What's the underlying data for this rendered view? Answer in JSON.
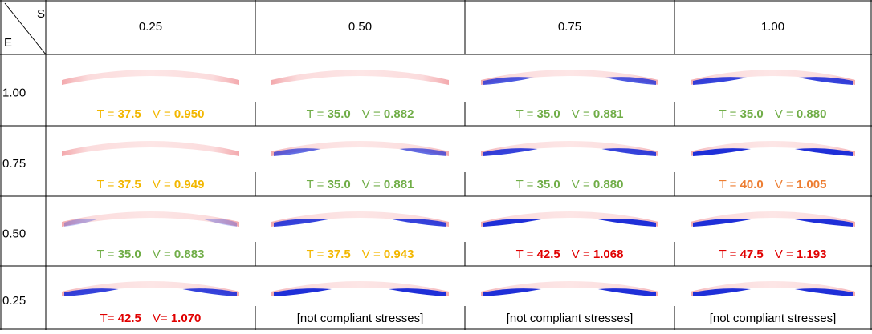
{
  "header": {
    "corner_top": "S",
    "corner_bottom": "E",
    "columns": [
      "0.25",
      "0.50",
      "0.75",
      "1.00"
    ]
  },
  "table": {
    "rows": [
      {
        "label": "1.00",
        "cells": [
          {
            "t_label": "T = ",
            "t": "37.5",
            "v_label": "V = ",
            "v": "0.950",
            "color": "#f2b700"
          },
          {
            "t_label": "T = ",
            "t": "35.0",
            "v_label": "V = ",
            "v": "0.882",
            "color": "#70ad47"
          },
          {
            "t_label": "T = ",
            "t": "35.0",
            "v_label": "V = ",
            "v": "0.881",
            "color": "#70ad47"
          },
          {
            "t_label": "T = ",
            "t": "35.0",
            "v_label": "V = ",
            "v": "0.880",
            "color": "#70ad47"
          }
        ]
      },
      {
        "label": "0.75",
        "cells": [
          {
            "t_label": "T = ",
            "t": "37.5",
            "v_label": "V = ",
            "v": "0.949",
            "color": "#f2b700"
          },
          {
            "t_label": "T = ",
            "t": "35.0",
            "v_label": "V = ",
            "v": "0.881",
            "color": "#70ad47"
          },
          {
            "t_label": "T = ",
            "t": "35.0",
            "v_label": "V = ",
            "v": "0.880",
            "color": "#70ad47"
          },
          {
            "t_label": "T = ",
            "t": "40.0",
            "v_label": "V = ",
            "v": "1.005",
            "color": "#ed7d31"
          }
        ]
      },
      {
        "label": "0.50",
        "cells": [
          {
            "t_label": "T = ",
            "t": "35.0",
            "v_label": "V = ",
            "v": "0.883",
            "color": "#70ad47"
          },
          {
            "t_label": "T = ",
            "t": "37.5",
            "v_label": "V = ",
            "v": "0.943",
            "color": "#f2b700"
          },
          {
            "t_label": "T = ",
            "t": "42.5",
            "v_label": "V = ",
            "v": "1.068",
            "color": "#e00000"
          },
          {
            "t_label": "T = ",
            "t": "47.5",
            "v_label": "V = ",
            "v": "1.193",
            "color": "#e00000"
          }
        ]
      },
      {
        "label": "0.25",
        "cells": [
          {
            "t_label": "T= ",
            "t": "42.5",
            "v_label": "V= ",
            "v": "1.070",
            "color": "#e00000"
          },
          {
            "text": "[not compliant stresses]"
          },
          {
            "text": "[not compliant stresses]"
          },
          {
            "text": "[not compliant stresses]"
          }
        ]
      }
    ]
  }
}
